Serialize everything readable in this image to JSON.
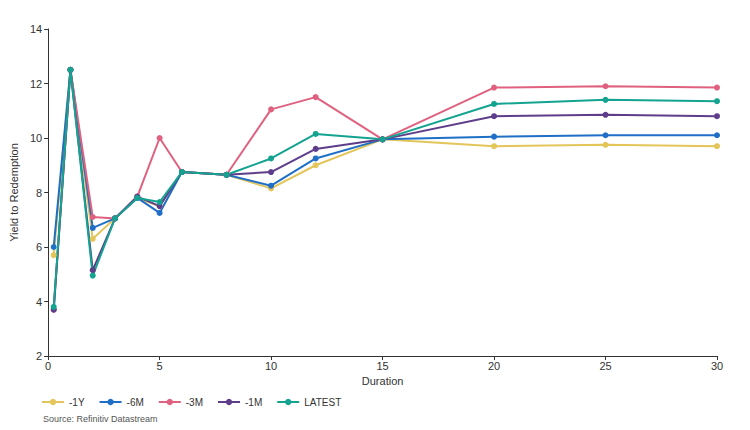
{
  "chart_data": {
    "type": "line",
    "x_label": "Duration",
    "y_label": "Yield to Redemption",
    "source": "Source: Refinitiv Datastream",
    "x": [
      0.25,
      1,
      2,
      3,
      4,
      5,
      6,
      8,
      10,
      12,
      15,
      20,
      25,
      30
    ],
    "xlim": [
      0,
      30
    ],
    "xticks": [
      0,
      5,
      10,
      15,
      20,
      25,
      30
    ],
    "ylim": [
      2,
      14
    ],
    "yticks": [
      2,
      4,
      6,
      8,
      10,
      12,
      14
    ],
    "grid": false,
    "legend": "bottom-left",
    "marker": "circle",
    "line_style": "solid",
    "series": [
      {
        "name": "-1Y",
        "color": "#e3c55a",
        "values": [
          5.7,
          12.5,
          6.3,
          7.05,
          7.8,
          7.5,
          8.75,
          8.65,
          8.15,
          9.0,
          9.95,
          9.7,
          9.75,
          9.7
        ]
      },
      {
        "name": "-6M",
        "color": "#1f6fc6",
        "values": [
          6.0,
          12.5,
          6.7,
          7.05,
          7.8,
          7.25,
          8.75,
          8.65,
          8.25,
          9.25,
          9.95,
          10.05,
          10.1,
          10.1
        ]
      },
      {
        "name": "-3M",
        "color": "#e0617f",
        "values": [
          3.7,
          12.5,
          7.1,
          7.05,
          7.85,
          10.0,
          8.75,
          8.65,
          11.05,
          11.5,
          9.95,
          11.85,
          11.9,
          11.85
        ]
      },
      {
        "name": "-1M",
        "color": "#5e3d8b",
        "values": [
          3.7,
          12.5,
          5.15,
          7.05,
          7.85,
          7.5,
          8.75,
          8.65,
          8.75,
          9.6,
          9.95,
          10.8,
          10.85,
          10.8
        ]
      },
      {
        "name": "LATEST",
        "color": "#13a390",
        "values": [
          3.8,
          12.5,
          4.95,
          7.05,
          7.8,
          7.65,
          8.75,
          8.65,
          9.25,
          10.15,
          9.95,
          11.25,
          11.4,
          11.35
        ]
      }
    ]
  }
}
